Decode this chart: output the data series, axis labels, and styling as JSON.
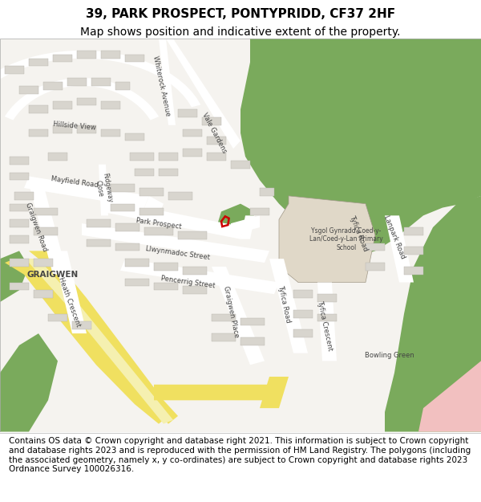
{
  "title_line1": "39, PARK PROSPECT, PONTYPRIDD, CF37 2HF",
  "title_line2": "Map shows position and indicative extent of the property.",
  "footer_text": "Contains OS data © Crown copyright and database right 2021. This information is subject to Crown copyright and database rights 2023 and is reproduced with the permission of HM Land Registry. The polygons (including the associated geometry, namely x, y co-ordinates) are subject to Crown copyright and database rights 2023 Ordnance Survey 100026316.",
  "bg_color": "#f5f3ef",
  "road_color": "#ffffff",
  "green_color": "#7aaa5c",
  "school_color": "#e0d8c8",
  "yellow_color": "#f0e060",
  "yellow_light": "#f5f0b0",
  "pink_color": "#f2c0c0",
  "red_outline": "#cc0000",
  "building_color": "#d8d5ce",
  "building_edge": "#b8b5ae",
  "title_fontsize": 11,
  "subtitle_fontsize": 10,
  "footer_fontsize": 7.5
}
